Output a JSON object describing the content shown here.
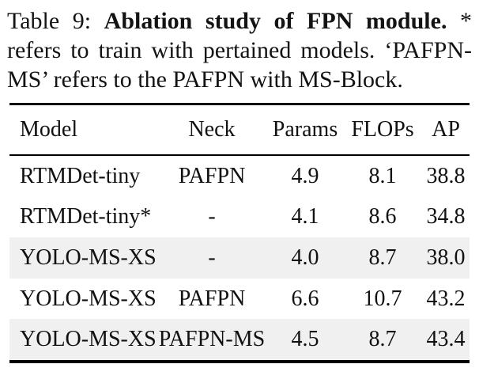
{
  "caption": {
    "prefix": "Table 9:",
    "bold": "Ablation study of FPN module.",
    "star": "*",
    "line2": "refers to train with pertained models. ‘PAFPN-",
    "line3": "MS’ refers to the PAFPN with MS-Block."
  },
  "table": {
    "columns": [
      "Model",
      "Neck",
      "Params",
      "FLOPs",
      "AP"
    ],
    "rows": [
      {
        "model": "RTMDet-tiny",
        "neck": "PAFPN",
        "params": "4.9",
        "flops": "8.1",
        "ap": "38.8"
      },
      {
        "model": "RTMDet-tiny*",
        "neck": "-",
        "params": "4.1",
        "flops": "8.6",
        "ap": "34.8"
      },
      {
        "model": "YOLO-MS-XS",
        "neck": "-",
        "params": "4.0",
        "flops": "8.7",
        "ap": "38.0"
      },
      {
        "model": "YOLO-MS-XS",
        "neck": "PAFPN",
        "params": "6.6",
        "flops": "10.7",
        "ap": "43.2"
      },
      {
        "model": "YOLO-MS-XS",
        "neck": "PAFPN-MS",
        "params": "4.5",
        "flops": "8.7",
        "ap": "43.4"
      }
    ],
    "row_shading": [
      false,
      false,
      true,
      false,
      true
    ],
    "colors": {
      "shaded_row_bg": "#f0f0f0",
      "rule": "#000000",
      "text": "#111111"
    }
  }
}
